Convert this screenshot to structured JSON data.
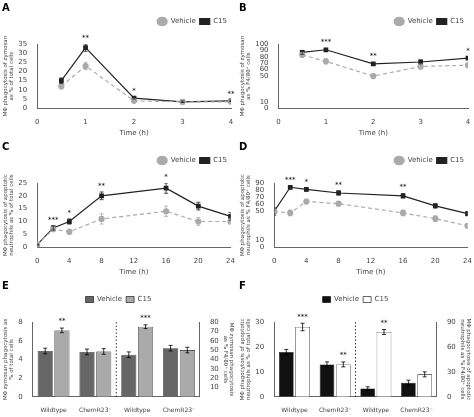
{
  "chart_data": [
    {
      "type": "line",
      "title": "A",
      "xlabel": "Time (h)",
      "ylabel": "MΦ phagocytosis of zymosan\nas % of total cells",
      "x": [
        0.5,
        1,
        2,
        3,
        4
      ],
      "series": [
        {
          "name": "Vehicle",
          "color": "#aaaaaa",
          "marker": "circle",
          "line_style": "dashed",
          "values": [
            12,
            23,
            4,
            3.5,
            3.5
          ],
          "errors": [
            1.5,
            2,
            0.5,
            0.4,
            0.3
          ]
        },
        {
          "name": "C15",
          "color": "#222222",
          "marker": "square",
          "line_style": "solid",
          "values": [
            15,
            33,
            5.5,
            3.5,
            4
          ],
          "errors": [
            1.5,
            2,
            0.5,
            0.4,
            0.4
          ]
        }
      ],
      "xlim": [
        0,
        4
      ],
      "xticks": [
        0,
        1,
        2,
        3,
        4
      ],
      "ylim": [
        0,
        35
      ],
      "yticks": [
        0,
        5,
        10,
        15,
        20,
        25,
        30,
        35
      ],
      "annotations": [
        {
          "x": 1,
          "text": "**"
        },
        {
          "x": 2,
          "text": "*"
        },
        {
          "x": 4,
          "text": "**"
        }
      ],
      "legend": "upper right",
      "grid": false
    },
    {
      "type": "line",
      "title": "B",
      "xlabel": "Time (h)",
      "ylabel": "MΦ phagocytosis of zymosan\nas % F4/80⁺ cells",
      "x": [
        0.5,
        1,
        2,
        3,
        4
      ],
      "series": [
        {
          "name": "Vehicle",
          "color": "#aaaaaa",
          "marker": "circle",
          "line_style": "dashed",
          "values": [
            83,
            73,
            50,
            65,
            67
          ],
          "errors": [
            3,
            4,
            3,
            4,
            3
          ]
        },
        {
          "name": "C15",
          "color": "#222222",
          "marker": "square",
          "line_style": "solid",
          "values": [
            87,
            91,
            69,
            72,
            78
          ],
          "errors": [
            3,
            2,
            2,
            3,
            2
          ]
        }
      ],
      "xlim": [
        0,
        4
      ],
      "xticks": [
        0,
        1,
        2,
        3,
        4
      ],
      "ylim": [
        0,
        100
      ],
      "yticks": [
        0,
        10,
        50,
        60,
        70,
        80,
        90,
        100
      ],
      "annotations": [
        {
          "x": 1,
          "text": "***"
        },
        {
          "x": 2,
          "text": "**"
        },
        {
          "x": 4,
          "text": "*"
        }
      ],
      "legend": "upper right",
      "grid": false
    },
    {
      "type": "line",
      "title": "C",
      "xlabel": "Time (h)",
      "ylabel": "MΦ phagocytosis of apoptotic\nneutrophils as % of total cells",
      "x": [
        0,
        2,
        4,
        8,
        16,
        20,
        24
      ],
      "series": [
        {
          "name": "Vehicle",
          "color": "#aaaaaa",
          "marker": "circle",
          "line_style": "dashed",
          "values": [
            1,
            7,
            6,
            11,
            14,
            10,
            10
          ],
          "errors": [
            0.2,
            0.8,
            1,
            2,
            2,
            1.5,
            1
          ]
        },
        {
          "name": "C15",
          "color": "#222222",
          "marker": "square",
          "line_style": "solid",
          "values": [
            1,
            7.5,
            10,
            20,
            23,
            16,
            12
          ],
          "errors": [
            0.2,
            0.8,
            1,
            1.5,
            2,
            1.5,
            1.5
          ]
        }
      ],
      "xlim": [
        0,
        24
      ],
      "xticks": [
        0,
        4,
        8,
        12,
        16,
        20,
        24
      ],
      "ylim": [
        0,
        25
      ],
      "yticks": [
        0,
        5,
        10,
        15,
        20,
        25
      ],
      "annotations": [
        {
          "x": 2,
          "text": "***"
        },
        {
          "x": 4,
          "text": "*"
        },
        {
          "x": 8,
          "text": "**"
        },
        {
          "x": 16,
          "text": "*"
        }
      ],
      "legend": "upper right",
      "grid": false
    },
    {
      "type": "line",
      "title": "D",
      "xlabel": "Time (h)",
      "ylabel": "MΦ phagocytosis of apoptotic\nneutrophils as % F4/80⁺ cells",
      "x": [
        0,
        2,
        4,
        8,
        16,
        20,
        24
      ],
      "series": [
        {
          "name": "Vehicle",
          "color": "#aaaaaa",
          "marker": "circle",
          "line_style": "dashed",
          "values": [
            50,
            48,
            64,
            61,
            48,
            40,
            30
          ],
          "errors": [
            5,
            4,
            3,
            3,
            4,
            4,
            3
          ]
        },
        {
          "name": "C15",
          "color": "#222222",
          "marker": "square",
          "line_style": "solid",
          "values": [
            50,
            84,
            81,
            76,
            72,
            58,
            47
          ],
          "errors": [
            5,
            2,
            2,
            3,
            3,
            3,
            3
          ]
        }
      ],
      "xlim": [
        0,
        24
      ],
      "xticks": [
        0,
        4,
        8,
        12,
        16,
        20,
        24
      ],
      "ylim": [
        0,
        90
      ],
      "yticks": [
        0,
        10,
        50,
        60,
        70,
        80,
        90
      ],
      "annotations": [
        {
          "x": 2,
          "text": "***"
        },
        {
          "x": 4,
          "text": "*"
        },
        {
          "x": 8,
          "text": "**"
        },
        {
          "x": 16,
          "text": "**"
        }
      ],
      "legend": "upper right",
      "grid": false
    },
    {
      "type": "bar",
      "title": "E",
      "categories": [
        "Wildtype",
        "ChemR23⁻",
        "Wildtype",
        "ChemR23⁻"
      ],
      "ylabel": "MΦ zymosan phagocytosis as\n% of total cells",
      "y2label": "MΦ zymosan phagocytosis\nas % F4/80⁺ cells",
      "series": [
        {
          "name": "Vehicle",
          "color": "#666666",
          "values": [
            4.9,
            4.8,
            null,
            null
          ],
          "errors": [
            0.3,
            0.3,
            null,
            null
          ]
        },
        {
          "name": "C15",
          "color": "#aaaaaa",
          "values": [
            7.1,
            4.85,
            null,
            null
          ],
          "errors": [
            0.25,
            0.3,
            null,
            null
          ],
          "annotations": [
            "**",
            null,
            null,
            null
          ]
        },
        {
          "name": "Vehicle",
          "color": "#666666",
          "axis": "y2",
          "values": [
            null,
            null,
            45,
            52
          ],
          "errors": [
            null,
            null,
            3,
            3
          ]
        },
        {
          "name": "C15",
          "color": "#aaaaaa",
          "axis": "y2",
          "values": [
            null,
            null,
            75,
            50
          ],
          "errors": [
            null,
            null,
            2,
            3
          ],
          "annotations": [
            null,
            null,
            "***",
            null
          ]
        }
      ],
      "ylim": [
        0,
        8
      ],
      "yticks": [
        0,
        2,
        4,
        6,
        8
      ],
      "y2lim": [
        0,
        80
      ],
      "y2ticks": [
        10,
        20,
        30,
        40,
        50,
        60,
        70,
        80
      ],
      "legend": "upper center",
      "grid": false
    },
    {
      "type": "bar",
      "title": "F",
      "categories": [
        "Wildtype",
        "ChemR23⁻",
        "Wildtype",
        "ChemR23⁻"
      ],
      "ylabel": "MΦ phagocytosis of apoptotic\nneutrophils as % of total cells",
      "y2label": "MΦ phagocytosis of apoptotic\nneutrophils as % F4/80⁺ cells",
      "series": [
        {
          "name": "Vehicle",
          "color": "#111111",
          "values": [
            18,
            13,
            null,
            null
          ],
          "errors": [
            1,
            1,
            null,
            null
          ]
        },
        {
          "name": "C15",
          "color": "#ffffff",
          "values": [
            28,
            13,
            null,
            null
          ],
          "errors": [
            1.5,
            1,
            null,
            null
          ],
          "annotations": [
            "***",
            "**",
            null,
            null
          ]
        },
        {
          "name": "Vehicle",
          "color": "#111111",
          "axis": "y2",
          "values": [
            null,
            null,
            10,
            17
          ],
          "errors": [
            null,
            null,
            2,
            3
          ]
        },
        {
          "name": "C15",
          "color": "#ffffff",
          "axis": "y2",
          "values": [
            null,
            null,
            78,
            27
          ],
          "errors": [
            null,
            null,
            3,
            3
          ],
          "annotations": [
            null,
            null,
            "**",
            null
          ]
        }
      ],
      "ylim": [
        0,
        30
      ],
      "yticks": [
        0,
        10,
        20,
        30
      ],
      "y2lim": [
        0,
        90
      ],
      "y2ticks": [
        0,
        30,
        60,
        90
      ],
      "legend": "upper center",
      "grid": false
    }
  ]
}
